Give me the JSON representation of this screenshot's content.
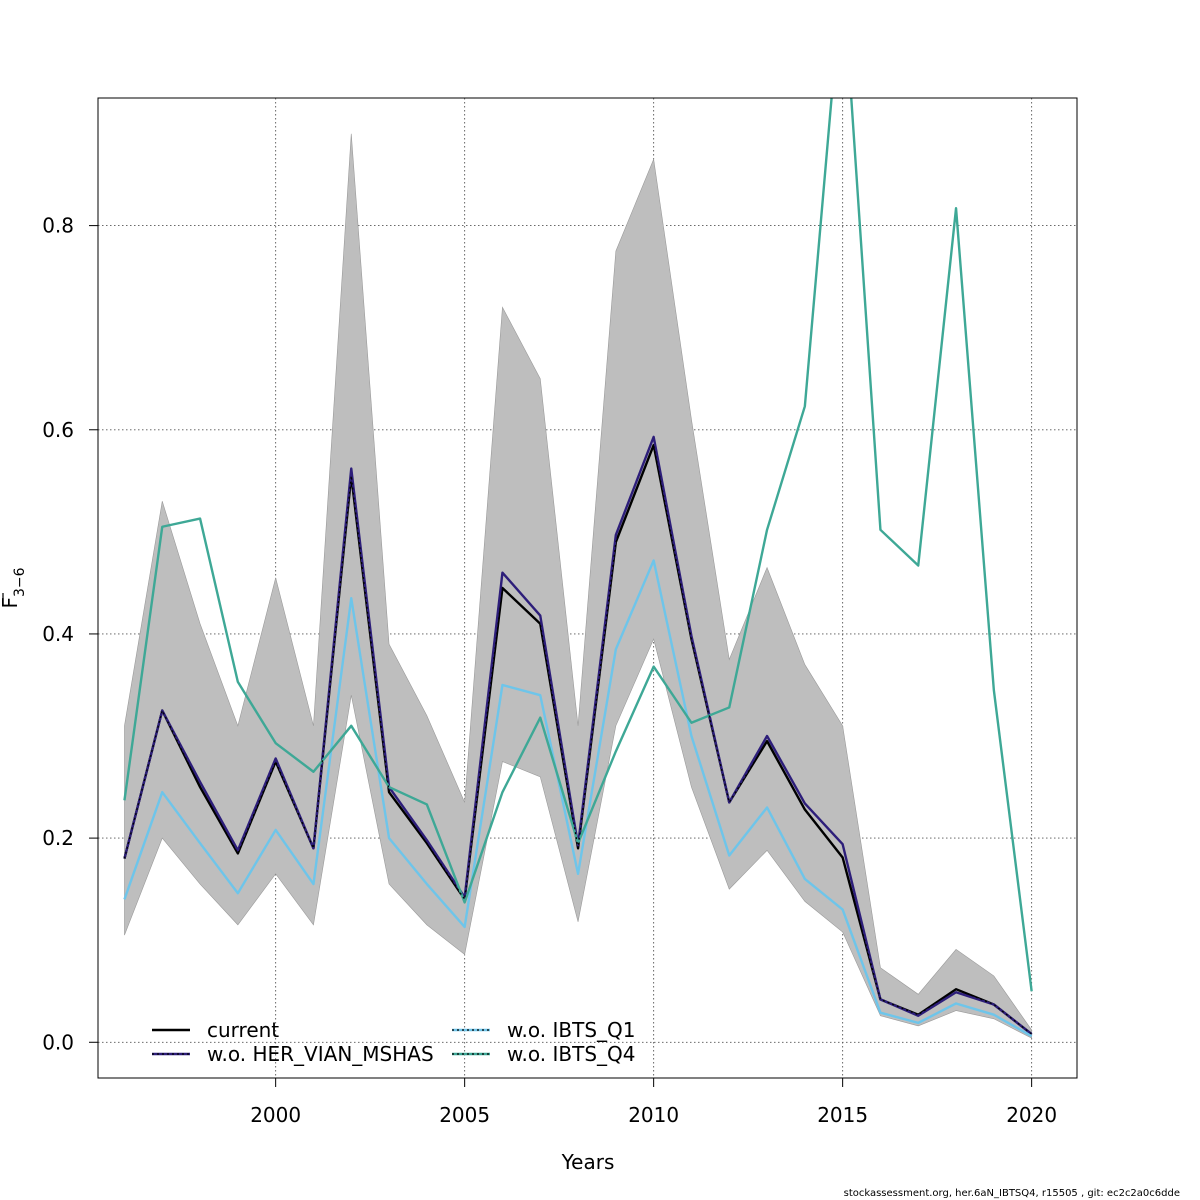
{
  "chart_data": {
    "type": "line",
    "title": "",
    "xlabel": "Years",
    "ylabel_main": "F",
    "ylabel_sub": "3−6",
    "xlim": [
      1995.3,
      2021.2
    ],
    "ylim": [
      -0.035,
      0.925
    ],
    "xticks": [
      2000,
      2005,
      2010,
      2015,
      2020
    ],
    "yticks": [
      0.0,
      0.2,
      0.4,
      0.6,
      0.8
    ],
    "ytick_labels": [
      "0.0",
      "0.2",
      "0.4",
      "0.6",
      "0.8"
    ],
    "grid": true,
    "x": [
      1996,
      1997,
      1998,
      1999,
      2000,
      2001,
      2002,
      2003,
      2004,
      2005,
      2006,
      2007,
      2008,
      2009,
      2010,
      2011,
      2012,
      2013,
      2014,
      2015,
      2016,
      2017,
      2018,
      2019,
      2020
    ],
    "confidence_band": {
      "color": "#bebebe",
      "upper": [
        0.31,
        0.53,
        0.41,
        0.31,
        0.455,
        0.31,
        0.89,
        0.39,
        0.32,
        0.235,
        0.72,
        0.65,
        0.31,
        0.775,
        0.865,
        0.61,
        0.375,
        0.465,
        0.37,
        0.31,
        0.073,
        0.047,
        0.091,
        0.065,
        0.012
      ],
      "lower": [
        0.105,
        0.2,
        0.155,
        0.115,
        0.165,
        0.115,
        0.34,
        0.155,
        0.115,
        0.086,
        0.275,
        0.26,
        0.118,
        0.31,
        0.395,
        0.25,
        0.15,
        0.188,
        0.138,
        0.108,
        0.026,
        0.016,
        0.031,
        0.023,
        0.004
      ]
    },
    "series": [
      {
        "name": "current",
        "color": "#000000",
        "dash": "solid",
        "values": [
          0.18,
          0.325,
          0.25,
          0.185,
          0.275,
          0.19,
          0.555,
          0.245,
          0.195,
          0.14,
          0.445,
          0.41,
          0.19,
          0.49,
          0.585,
          0.395,
          0.235,
          0.295,
          0.228,
          0.181,
          0.042,
          0.027,
          0.052,
          0.037,
          0.008
        ]
      },
      {
        "name": "w.o. HER_VIAN_MSHAS",
        "color": "#2d1e7a",
        "dash": "solid",
        "values": [
          0.18,
          0.325,
          0.255,
          0.188,
          0.278,
          0.19,
          0.562,
          0.25,
          0.198,
          0.142,
          0.46,
          0.418,
          0.193,
          0.497,
          0.593,
          0.398,
          0.235,
          0.3,
          0.234,
          0.194,
          0.042,
          0.026,
          0.049,
          0.037,
          0.008
        ]
      },
      {
        "name": "w.o. IBTS_Q1",
        "color": "#6ec5ea",
        "dash": "solid",
        "values": [
          0.14,
          0.245,
          0.195,
          0.146,
          0.208,
          0.155,
          0.435,
          0.2,
          0.155,
          0.113,
          0.35,
          0.34,
          0.165,
          0.385,
          0.472,
          0.3,
          0.183,
          0.23,
          0.16,
          0.13,
          0.029,
          0.019,
          0.038,
          0.027,
          0.006
        ]
      },
      {
        "name": "w.o. IBTS_Q4",
        "color": "#3ea896",
        "dash": "solid",
        "values": [
          0.237,
          0.505,
          0.513,
          0.353,
          0.293,
          0.265,
          0.31,
          0.25,
          0.233,
          0.137,
          0.245,
          0.318,
          0.195,
          0.285,
          0.368,
          0.313,
          0.328,
          0.502,
          0.623,
          1.05,
          0.502,
          0.467,
          0.817,
          0.345,
          0.05
        ]
      }
    ],
    "legend": {
      "placement": "bottom-left",
      "entries": [
        {
          "label": "current",
          "color": "#000000",
          "dotted_overlay": null
        },
        {
          "label": "w.o. HER_VIAN_MSHAS",
          "color": "#2d1e7a",
          "dotted_overlay": "#000000"
        },
        {
          "label": "w.o. IBTS_Q1",
          "color": "#6ec5ea",
          "dotted_overlay": "#000000"
        },
        {
          "label": "w.o. IBTS_Q4",
          "color": "#3ea896",
          "dotted_overlay": "#000000"
        }
      ]
    },
    "footer_text": "stockassessment.org, her.6aN_IBTSQ4, r15505 , git: ec2c2a0c6dde"
  }
}
